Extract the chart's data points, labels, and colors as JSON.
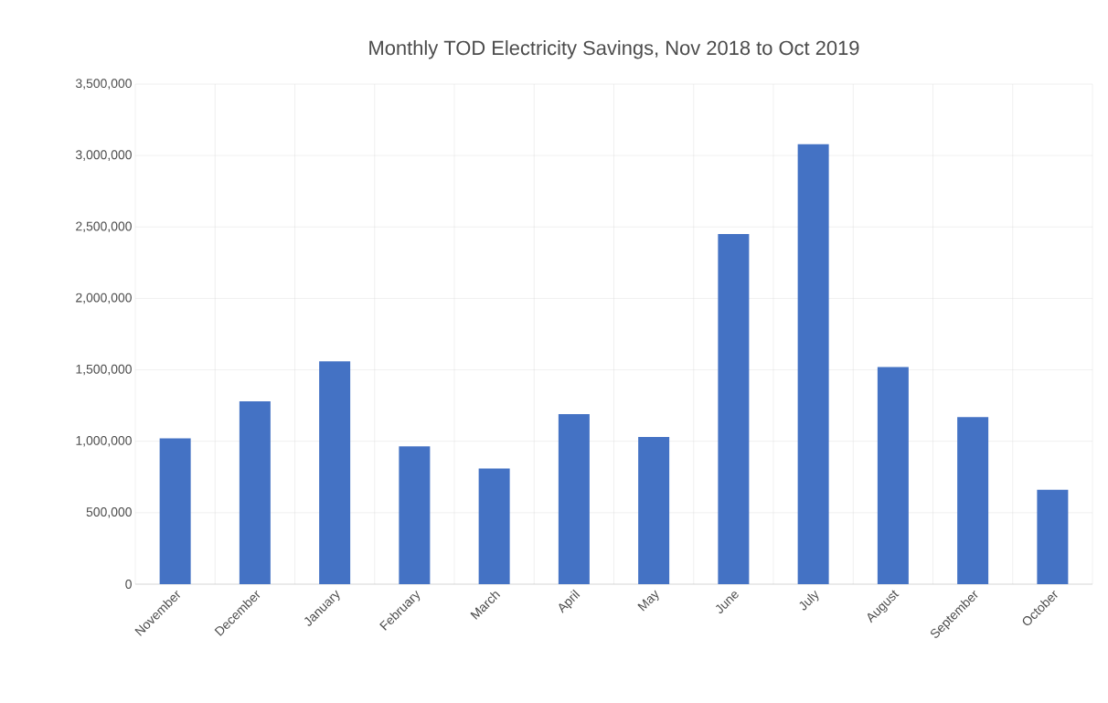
{
  "chart_data": {
    "type": "bar",
    "title": "Monthly TOD Electricity Savings, Nov 2018 to Oct 2019",
    "categories": [
      "November",
      "December",
      "January",
      "February",
      "March",
      "April",
      "May",
      "June",
      "July",
      "August",
      "September",
      "October"
    ],
    "values": [
      1020000,
      1280000,
      1560000,
      965000,
      810000,
      1190000,
      1030000,
      2450000,
      3080000,
      1520000,
      1170000,
      660000
    ],
    "color": "#4472c4",
    "ylim": [
      0,
      3500000
    ],
    "yticks": [
      {
        "value": 0,
        "label": "0"
      },
      {
        "value": 500000,
        "label": "500,000"
      },
      {
        "value": 1000000,
        "label": "1,000,000"
      },
      {
        "value": 1500000,
        "label": "1,500,000"
      },
      {
        "value": 2000000,
        "label": "2,000,000"
      },
      {
        "value": 2500000,
        "label": "2,500,000"
      },
      {
        "value": 3000000,
        "label": "3,000,000"
      },
      {
        "value": 3500000,
        "label": "3,500,000"
      }
    ],
    "grid": true
  }
}
